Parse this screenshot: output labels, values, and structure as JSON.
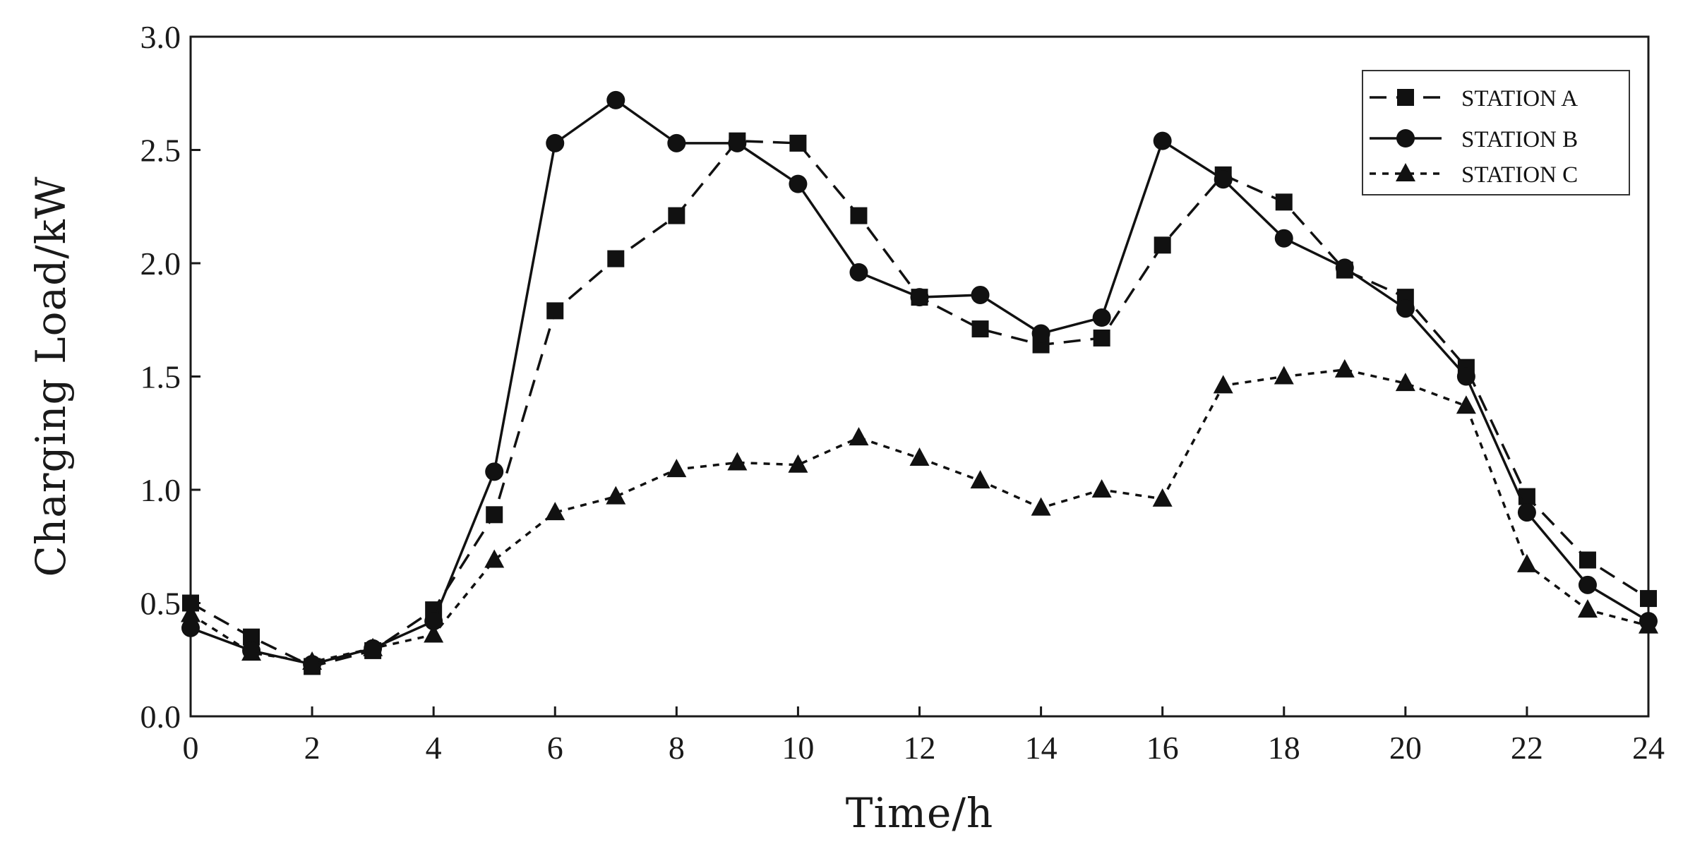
{
  "chart_data": {
    "type": "line",
    "title": "",
    "xlabel": "Time/h",
    "ylabel": "Charging Load/kW",
    "xlim": [
      0,
      24
    ],
    "ylim": [
      0.0,
      3.0
    ],
    "x_ticks": [
      0,
      2,
      4,
      6,
      8,
      10,
      12,
      14,
      16,
      18,
      20,
      22,
      24
    ],
    "x_tick_labels": [
      "0",
      "2",
      "4",
      "6",
      "8",
      "10",
      "12",
      "14",
      "16",
      "18",
      "20",
      "22",
      "24"
    ],
    "y_ticks": [
      0.0,
      0.5,
      1.0,
      1.5,
      2.0,
      2.5,
      3.0
    ],
    "y_tick_labels": [
      "0.0",
      "0.5",
      "1.0",
      "1.5",
      "2.0",
      "2.5",
      "3.0"
    ],
    "grid": false,
    "legend_position": "top-right",
    "x": [
      0,
      1,
      2,
      3,
      4,
      5,
      6,
      7,
      8,
      9,
      10,
      11,
      12,
      13,
      14,
      15,
      16,
      17,
      18,
      19,
      20,
      21,
      22,
      23,
      24
    ],
    "series": [
      {
        "name": "STATION A",
        "marker": "square",
        "line_style": "dash",
        "color": "#111111",
        "values": [
          0.5,
          0.35,
          0.22,
          0.29,
          0.47,
          0.89,
          1.79,
          2.02,
          2.21,
          2.54,
          2.53,
          2.21,
          1.85,
          1.71,
          1.64,
          1.67,
          2.08,
          2.39,
          2.27,
          1.97,
          1.85,
          1.54,
          0.97,
          0.69,
          0.52
        ]
      },
      {
        "name": "STATION B",
        "marker": "circle",
        "line_style": "solid",
        "color": "#111111",
        "values": [
          0.39,
          0.29,
          0.23,
          0.3,
          0.42,
          1.08,
          2.53,
          2.72,
          2.53,
          2.53,
          2.35,
          1.96,
          1.85,
          1.86,
          1.69,
          1.76,
          2.54,
          2.37,
          2.11,
          1.98,
          1.8,
          1.5,
          0.9,
          0.58,
          0.42
        ]
      },
      {
        "name": "STATION C",
        "marker": "triangle",
        "line_style": "dot",
        "color": "#111111",
        "values": [
          0.45,
          0.28,
          0.24,
          0.3,
          0.36,
          0.69,
          0.9,
          0.97,
          1.09,
          1.12,
          1.11,
          1.23,
          1.14,
          1.04,
          0.92,
          1.0,
          0.96,
          1.46,
          1.5,
          1.53,
          1.47,
          1.37,
          0.67,
          0.47,
          0.4
        ]
      }
    ]
  }
}
